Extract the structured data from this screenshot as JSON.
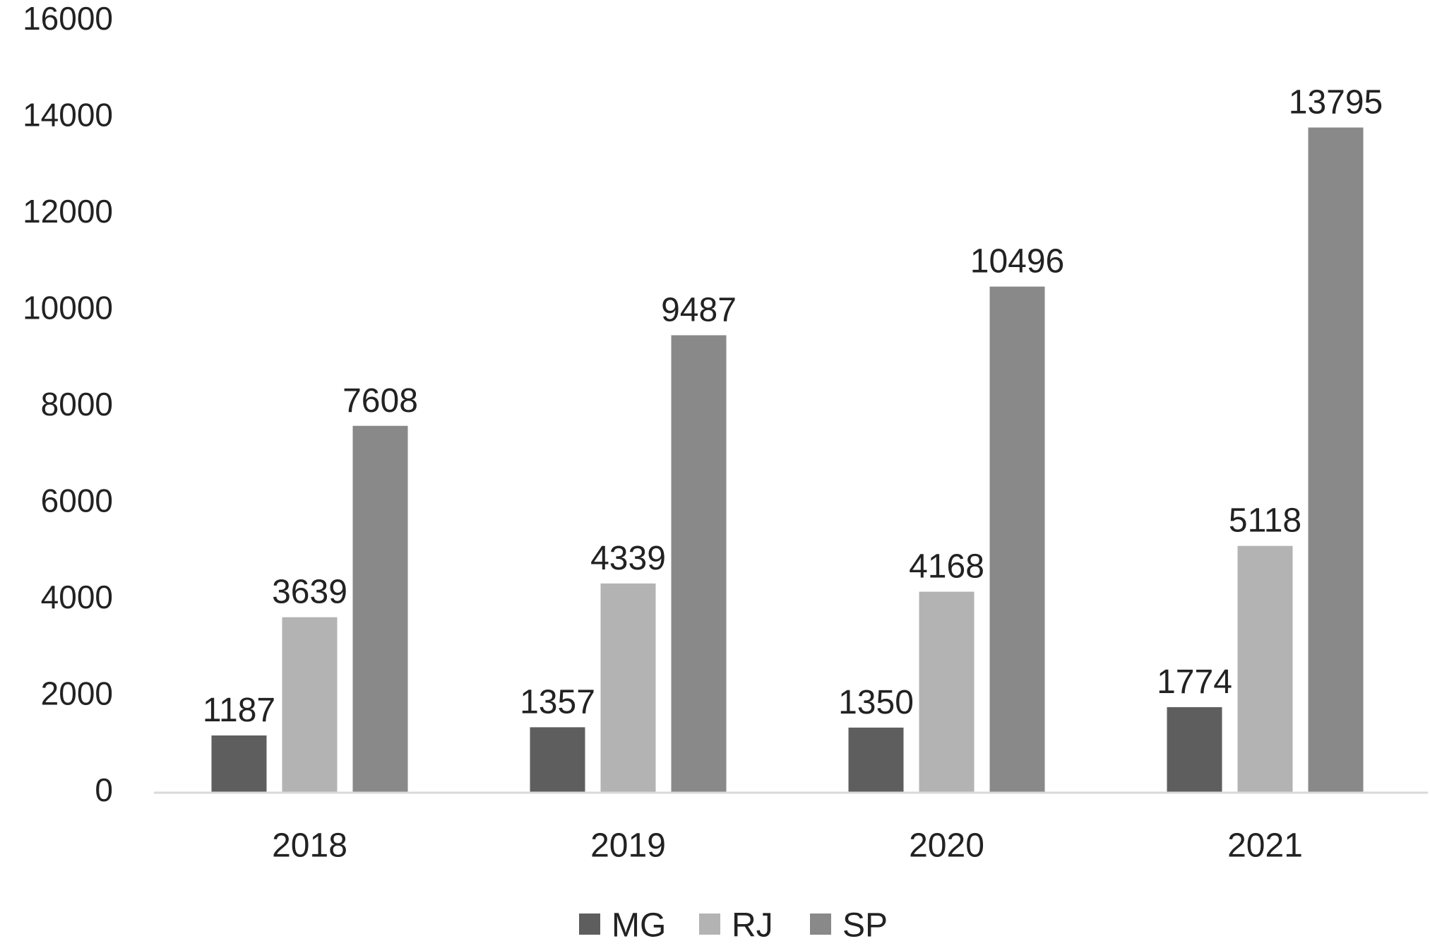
{
  "chart_data": {
    "type": "bar",
    "title": "",
    "xlabel": "",
    "ylabel": "",
    "categories": [
      "2018",
      "2019",
      "2020",
      "2021"
    ],
    "series": [
      {
        "name": "MG",
        "color": "#5e5e5e",
        "values": [
          1187,
          1357,
          1350,
          1774
        ]
      },
      {
        "name": "RJ",
        "color": "#b3b3b3",
        "values": [
          3639,
          4339,
          4168,
          5118
        ]
      },
      {
        "name": "SP",
        "color": "#898989",
        "values": [
          7608,
          9487,
          10496,
          13795
        ]
      }
    ],
    "ylim": [
      0,
      16000
    ],
    "yticks": [
      "0",
      "2000",
      "4000",
      "6000",
      "8000",
      "10000",
      "12000",
      "14000",
      "16000"
    ],
    "grid": false,
    "data_labels": true,
    "legend_position": "bottom"
  }
}
